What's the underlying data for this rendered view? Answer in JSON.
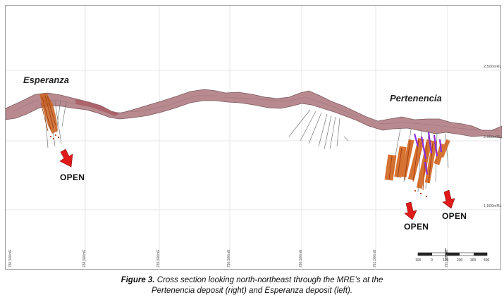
{
  "deposits": {
    "left": "Esperanza",
    "right": "Pertenencia"
  },
  "open_labels": [
    "OPEN",
    "OPEN",
    "OPEN"
  ],
  "elevations": [
    "2,500mRL",
    "2,000mRL",
    "1,500mRL"
  ],
  "eastings": [
    "786,500mE",
    "788,500mE",
    "789,500mE",
    "790,500mE",
    "790,500mE",
    "791,000mE",
    "791,500mE"
  ],
  "scale_bar": {
    "ticks": [
      "100",
      "0",
      "100",
      "200",
      "300",
      "400"
    ]
  },
  "caption": {
    "label": "Figure 3.",
    "line1": "Cross section looking north-northeast through the MRE’s at the",
    "line2": "Pertenencia deposit (right) and Esperanza deposit (left)."
  },
  "colors": {
    "terrain": "#b88a8f",
    "terrain_edge": "#7a5a5e",
    "ore": "#d2641e",
    "high_grade": "#8a2be2",
    "arrow": "#e01a1a"
  }
}
